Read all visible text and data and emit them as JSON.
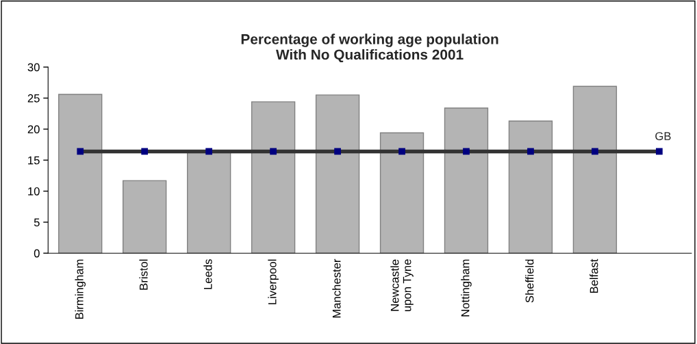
{
  "chart_data": {
    "type": "bar",
    "title": "Percentage of working age population\nWith No Qualifications 2001",
    "categories": [
      "Birmingham",
      "Bristol",
      "Leeds",
      "Liverpool",
      "Manchester",
      "Newcastle\nupon Tyne",
      "Nottingham",
      "Sheffield",
      "Belfast",
      null
    ],
    "series": [
      {
        "color": "#b4b4b4",
        "values": [
          25.6,
          11.7,
          16.2,
          24.4,
          25.5,
          19.4,
          23.4,
          21.3,
          26.9,
          null
        ]
      },
      {
        "type": "line",
        "name": "GB",
        "color": "#333333",
        "marker": "square",
        "values": [
          16.4,
          16.4,
          16.4,
          16.4,
          16.4,
          16.4,
          16.4,
          16.4,
          16.4,
          16.4
        ]
      }
    ],
    "ylim": [
      0,
      30
    ],
    "yticks": [
      0,
      5,
      10,
      15,
      20,
      25,
      30
    ],
    "grid": false,
    "legend": false
  }
}
